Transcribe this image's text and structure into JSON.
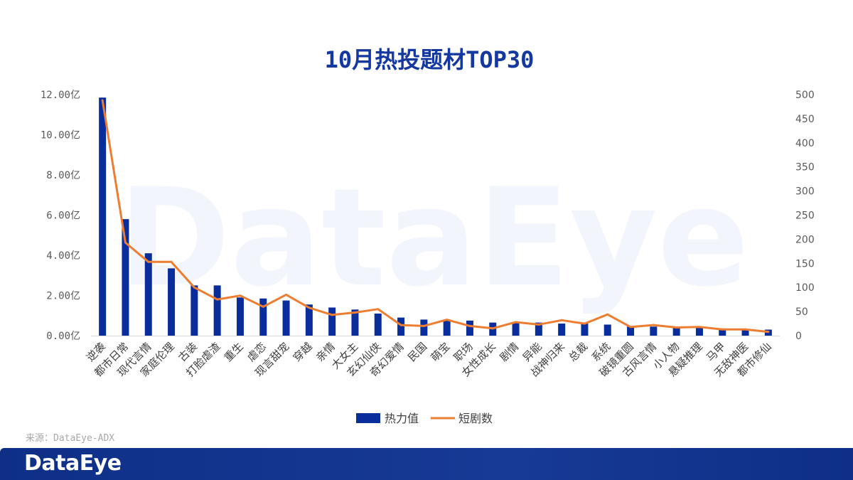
{
  "branding": {
    "watermark": "DataEye",
    "logo": "DataEye",
    "footer_color": "#173a96"
  },
  "source": "来源：DataEye-ADX",
  "chart_data": {
    "type": "bar+line",
    "title": "10月热投题材TOP30",
    "categories": [
      "逆袭",
      "都市日常",
      "现代言情",
      "家庭伦理",
      "古装",
      "打脸虐渣",
      "重生",
      "虐恋",
      "现言甜宠",
      "穿越",
      "亲情",
      "大女主",
      "玄幻仙侠",
      "奇幻爱情",
      "民国",
      "萌宝",
      "职场",
      "女性成长",
      "剧情",
      "异能",
      "战神归来",
      "总裁",
      "系统",
      "破镜重圆",
      "古风言情",
      "小人物",
      "悬疑推理",
      "马甲",
      "无敌神医",
      "都市修仙"
    ],
    "series": [
      {
        "name": "热力值",
        "type": "bar",
        "axis": "left",
        "color": "#0a2d9c",
        "values": [
          11.85,
          5.8,
          4.1,
          3.35,
          2.5,
          2.5,
          1.9,
          1.85,
          1.75,
          1.55,
          1.4,
          1.3,
          1.1,
          0.9,
          0.8,
          0.75,
          0.75,
          0.65,
          0.65,
          0.65,
          0.6,
          0.6,
          0.55,
          0.45,
          0.45,
          0.4,
          0.4,
          0.35,
          0.3,
          0.3
        ]
      },
      {
        "name": "短剧数",
        "type": "line",
        "axis": "right",
        "color": "#ed7d31",
        "values": [
          488,
          193,
          153,
          153,
          100,
          75,
          83,
          60,
          85,
          58,
          43,
          48,
          55,
          22,
          20,
          33,
          20,
          15,
          28,
          23,
          32,
          25,
          44,
          18,
          22,
          17,
          18,
          13,
          13,
          8
        ]
      }
    ],
    "y_left": {
      "min": 0,
      "max": 12,
      "ticks": [
        0,
        2,
        4,
        6,
        8,
        10,
        12
      ],
      "tick_labels": [
        "0.00亿",
        "2.00亿",
        "4.00亿",
        "6.00亿",
        "8.00亿",
        "10.00亿",
        "12.00亿"
      ]
    },
    "y_right": {
      "min": 0,
      "max": 500,
      "ticks": [
        0,
        50,
        100,
        150,
        200,
        250,
        300,
        350,
        400,
        450,
        500
      ]
    },
    "grid": false,
    "legend_position": "bottom"
  }
}
